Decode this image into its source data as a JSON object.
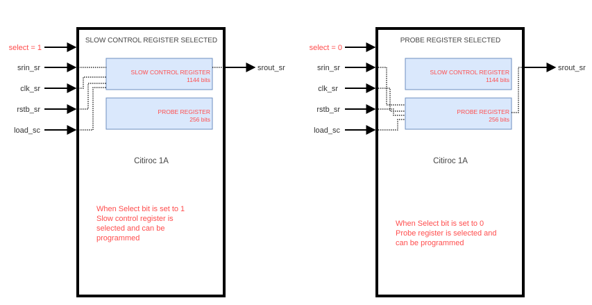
{
  "diagrams": [
    {
      "header": "SLOW CONTROL REGISTER SELECTED",
      "select_label": "select = 1",
      "inputs": [
        "srin_sr",
        "clk_sr",
        "rstb_sr",
        "load_sc"
      ],
      "output": "srout_sr",
      "registers": [
        {
          "name": "SLOW CONTROL REGISTER",
          "size": "1144 bits"
        },
        {
          "name": "PROBE REGISTER",
          "size": "256 bits"
        }
      ],
      "chip_name": "Citiroc 1A",
      "note_lines": [
        "When Select bit is set to 1",
        "Slow control register is",
        "selected and can be",
        "programmed"
      ]
    },
    {
      "header": "PROBE REGISTER SELECTED",
      "select_label": "select = 0",
      "inputs": [
        "srin_sr",
        "clk_sr",
        "rstb_sr",
        "load_sc"
      ],
      "output": "srout_sr",
      "registers": [
        {
          "name": "SLOW CONTROL REGISTER",
          "size": "1144 bits"
        },
        {
          "name": "PROBE REGISTER",
          "size": "256 bits"
        }
      ],
      "chip_name": "Citiroc 1A",
      "note_lines": [
        "When Select bit is set to 0",
        "Probe register is selected and",
        "can be programmed"
      ]
    }
  ],
  "colors": {
    "accent_red": "#ff4d4d",
    "register_fill": "#dae8fc",
    "register_stroke": "#6c8ebf"
  }
}
